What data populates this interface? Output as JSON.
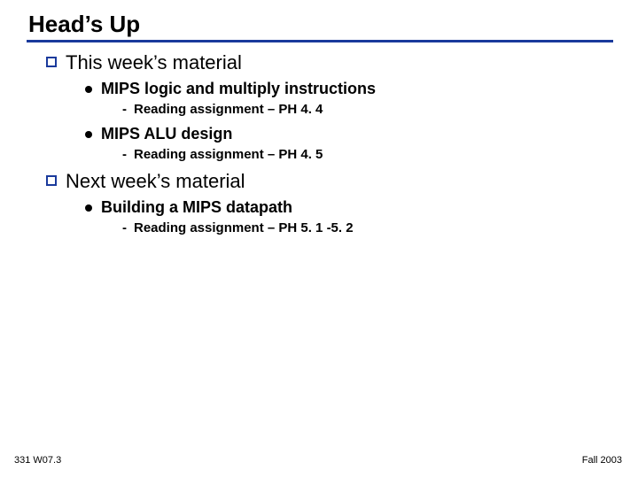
{
  "title": "Head’s Up",
  "rule_color": "#1a3a9c",
  "sections": {
    "s0": {
      "text": "This week’s material"
    },
    "s0_b0": {
      "text": "MIPS logic  and multiply instructions"
    },
    "s0_b0_r0": {
      "text": "Reading assignment – PH 4. 4"
    },
    "s0_b1": {
      "text": "MIPS ALU design"
    },
    "s0_b1_r0": {
      "text": "Reading assignment – PH 4. 5"
    },
    "s1": {
      "text": "Next week’s material"
    },
    "s1_b0": {
      "text": "Building a MIPS datapath"
    },
    "s1_b0_r0": {
      "text": "Reading assignment – PH 5. 1 -5. 2"
    }
  },
  "footer": {
    "left": "331 W07.3",
    "right": "Fall 2003"
  }
}
